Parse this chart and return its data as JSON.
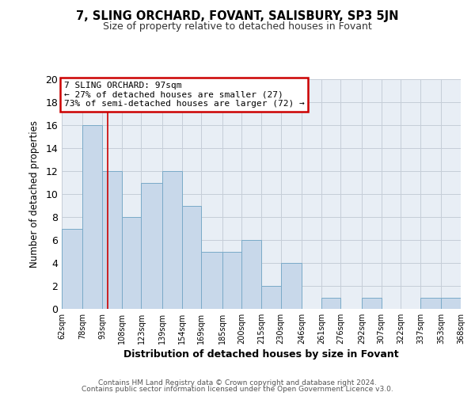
{
  "title": "7, SLING ORCHARD, FOVANT, SALISBURY, SP3 5JN",
  "subtitle": "Size of property relative to detached houses in Fovant",
  "xlabel": "Distribution of detached houses by size in Fovant",
  "ylabel": "Number of detached properties",
  "bar_color": "#c8d8ea",
  "bar_edge_color": "#7aaac8",
  "background_color": "#e8eef5",
  "grid_color": "#c5cdd8",
  "annotation_text": "7 SLING ORCHARD: 97sqm\n← 27% of detached houses are smaller (27)\n73% of semi-detached houses are larger (72) →",
  "annotation_box_color": "#ffffff",
  "annotation_box_edge": "#cc0000",
  "ref_line_x": 97,
  "ref_line_color": "#cc0000",
  "bins": [
    62,
    78,
    93,
    108,
    123,
    139,
    154,
    169,
    185,
    200,
    215,
    230,
    246,
    261,
    276,
    292,
    307,
    322,
    337,
    353,
    368
  ],
  "counts": [
    7,
    16,
    12,
    8,
    11,
    12,
    9,
    5,
    5,
    6,
    2,
    4,
    0,
    1,
    0,
    1,
    0,
    0,
    1,
    1
  ],
  "tick_labels": [
    "62sqm",
    "78sqm",
    "93sqm",
    "108sqm",
    "123sqm",
    "139sqm",
    "154sqm",
    "169sqm",
    "185sqm",
    "200sqm",
    "215sqm",
    "230sqm",
    "246sqm",
    "261sqm",
    "276sqm",
    "292sqm",
    "307sqm",
    "322sqm",
    "337sqm",
    "353sqm",
    "368sqm"
  ],
  "ylim": [
    0,
    20
  ],
  "yticks": [
    0,
    2,
    4,
    6,
    8,
    10,
    12,
    14,
    16,
    18,
    20
  ],
  "footer1": "Contains HM Land Registry data © Crown copyright and database right 2024.",
  "footer2": "Contains public sector information licensed under the Open Government Licence v3.0."
}
